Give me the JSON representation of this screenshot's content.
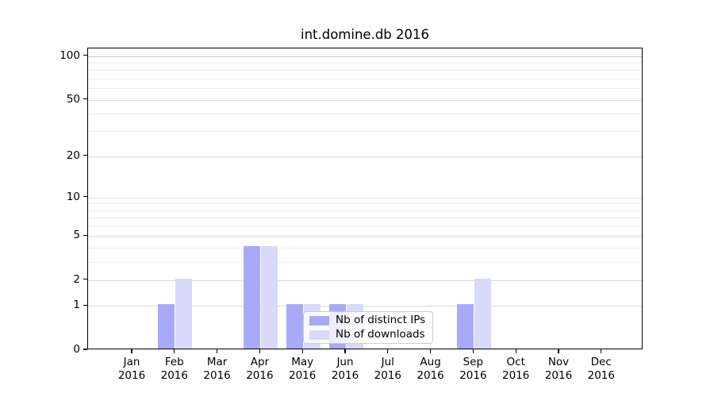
{
  "chart_data": {
    "type": "bar",
    "title": "int.domine.db 2016",
    "categories": [
      "Jan 2016",
      "Feb 2016",
      "Mar 2016",
      "Apr 2016",
      "May 2016",
      "Jun 2016",
      "Jul 2016",
      "Aug 2016",
      "Sep 2016",
      "Oct 2016",
      "Nov 2016",
      "Dec 2016"
    ],
    "series": [
      {
        "name": "Nb of distinct IPs",
        "color": "#a9a9f9",
        "values": [
          0,
          1,
          0,
          4,
          1,
          1,
          0,
          0,
          1,
          0,
          0,
          0
        ]
      },
      {
        "name": "Nb of downloads",
        "color": "#d9d9f9",
        "values": [
          0,
          2,
          0,
          4,
          1,
          1,
          0,
          0,
          2,
          0,
          0,
          0
        ]
      }
    ],
    "xlabel": "",
    "ylabel": "",
    "y_scale": "log1p",
    "ylim": [
      0,
      113
    ],
    "y_major_ticks": [
      0,
      1,
      2,
      5,
      10,
      20,
      50,
      100
    ],
    "y_minor_ticks": [
      3,
      4,
      6,
      7,
      8,
      9,
      30,
      40,
      60,
      70,
      80,
      90
    ],
    "grid": "horizontal",
    "legend": {
      "position": "lower-center-inside",
      "entries": [
        "Nb of distinct IPs",
        "Nb of downloads"
      ]
    }
  },
  "colors": {
    "grid_major": "#dbdbdb",
    "grid_minor": "#efefef",
    "grid_top": "#c6c6c6",
    "axis": "#000000",
    "legend_border": "#cccccc",
    "background": "#ffffff"
  }
}
